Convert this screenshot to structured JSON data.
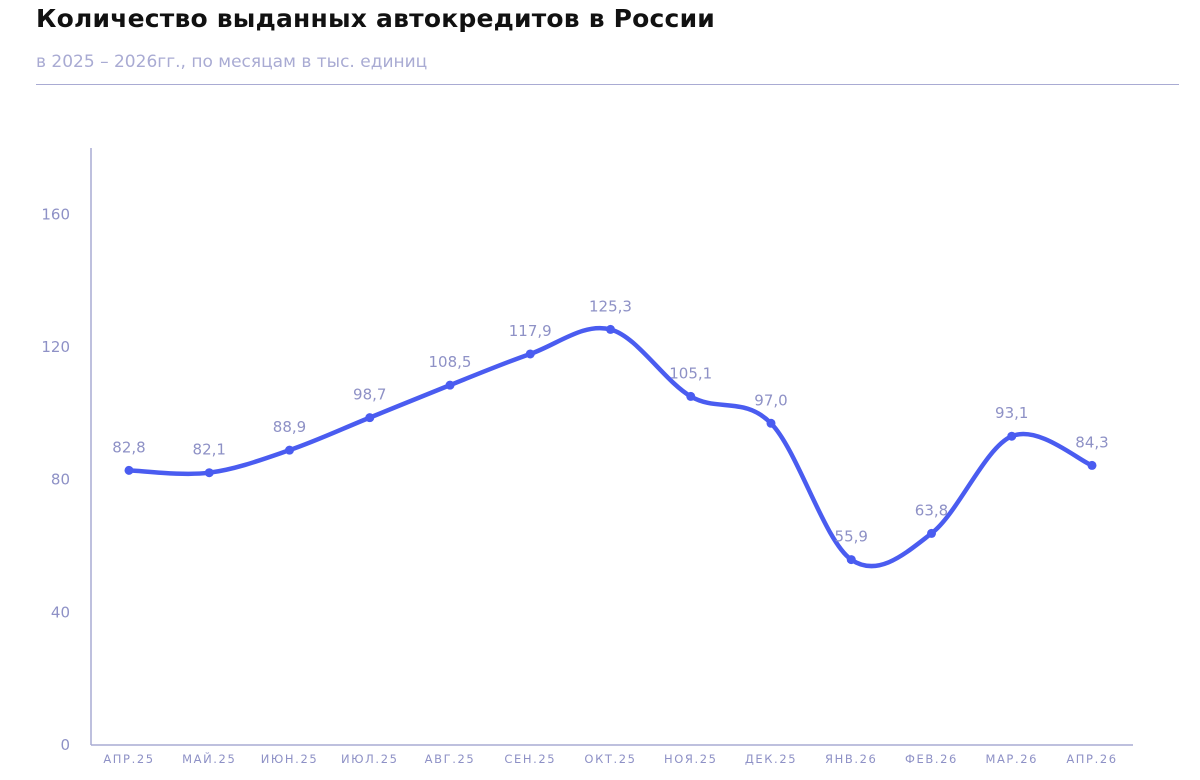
{
  "header": {
    "title": "Количество выданных автокредитов в России",
    "subtitle": "в 2025 – 2026гг., по месяцам в тыс. единиц"
  },
  "colors": {
    "line": "#4a5cf0",
    "axis": "#a9abd3",
    "text": "#8e91c6"
  },
  "chart_data": {
    "type": "line",
    "title": "Количество выданных автокредитов в России",
    "subtitle": "в 2025 – 2026гг., по месяцам в тыс. единиц",
    "xlabel": "",
    "ylabel": "",
    "categories": [
      "АПР.25",
      "МАЙ.25",
      "ИЮН.25",
      "ИЮЛ.25",
      "АВГ.25",
      "СЕН.25",
      "ОКТ.25",
      "НОЯ.25",
      "ДЕК.25",
      "ЯНВ.26",
      "ФЕВ.26",
      "МАР.26",
      "АПР.26"
    ],
    "series": [
      {
        "values": [
          82.8,
          82.1,
          88.9,
          98.7,
          108.5,
          117.9,
          125.3,
          105.1,
          97.0,
          55.9,
          63.8,
          93.1,
          84.3
        ],
        "labels": [
          "82,8",
          "82,1",
          "88,9",
          "98,7",
          "108,5",
          "117,9",
          "125,3",
          "105,1",
          "97,0",
          "55,9",
          "63,8",
          "93,1",
          "84,3"
        ]
      }
    ],
    "ylim": [
      0,
      180
    ],
    "yticks": [
      0,
      40,
      80,
      120,
      160
    ],
    "grid": false,
    "legend": "none"
  }
}
